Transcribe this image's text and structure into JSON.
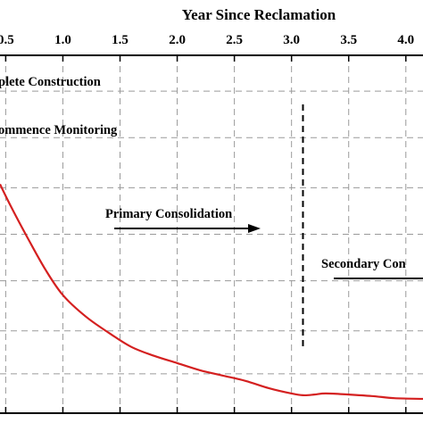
{
  "chart_data": {
    "type": "line",
    "title": "",
    "xlabel": "Year Since Reclamation",
    "ylabel": "",
    "xlim": [
      0.45,
      4.15
    ],
    "ylim": [
      0,
      1
    ],
    "x_tick_values": [
      0.5,
      1.0,
      1.5,
      2.0,
      2.5,
      3.0,
      3.5,
      4.0
    ],
    "x_tick_labels": [
      "0.5",
      "1.0",
      "1.5",
      "2.0",
      "2.5",
      "3.0",
      "3.5",
      "4.0"
    ],
    "y_grid_values": [
      0.11,
      0.23,
      0.37,
      0.5,
      0.63,
      0.77,
      0.9
    ],
    "grid": true,
    "series": [
      {
        "name": "",
        "color": "#d42020",
        "points": [
          [
            0.45,
            0.64
          ],
          [
            0.55,
            0.575
          ],
          [
            0.7,
            0.485
          ],
          [
            0.85,
            0.4
          ],
          [
            1.0,
            0.33
          ],
          [
            1.2,
            0.27
          ],
          [
            1.4,
            0.225
          ],
          [
            1.6,
            0.185
          ],
          [
            1.8,
            0.16
          ],
          [
            2.0,
            0.14
          ],
          [
            2.2,
            0.12
          ],
          [
            2.4,
            0.105
          ],
          [
            2.6,
            0.09
          ],
          [
            2.8,
            0.07
          ],
          [
            3.0,
            0.055
          ],
          [
            3.1,
            0.05
          ],
          [
            3.2,
            0.052
          ],
          [
            3.3,
            0.055
          ],
          [
            3.5,
            0.052
          ],
          [
            3.7,
            0.048
          ],
          [
            3.9,
            0.042
          ],
          [
            4.15,
            0.04
          ]
        ]
      }
    ],
    "reference_line": {
      "x": 3.1,
      "style": "dashed"
    },
    "annotations": [
      {
        "id": "complete-construction",
        "text": "plete Construction"
      },
      {
        "id": "commence-monitoring",
        "text": "ommence Monitoring"
      },
      {
        "id": "primary-consolidation",
        "text": "Primary Consolidation"
      },
      {
        "id": "secondary-consolidation",
        "text": "Secondary Con"
      }
    ]
  }
}
